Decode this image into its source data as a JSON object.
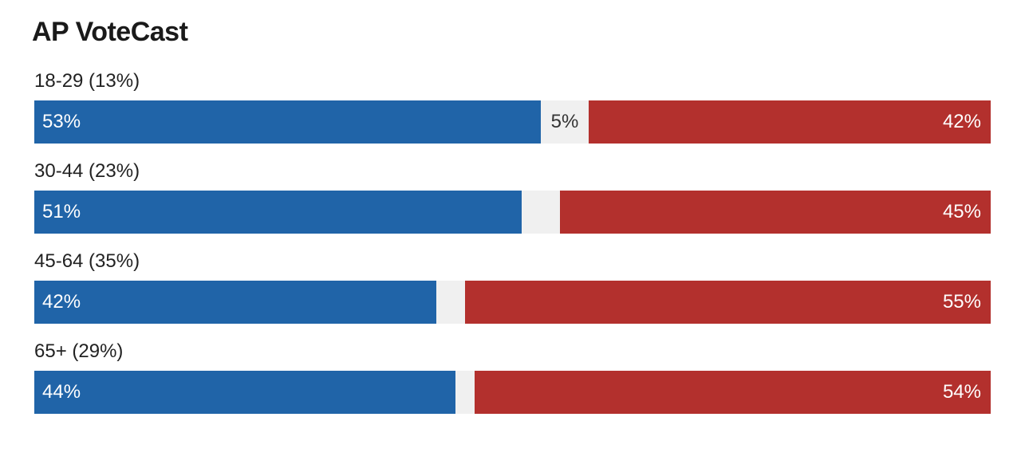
{
  "title": "AP VoteCast",
  "colors": {
    "dem": "#2064a8",
    "rep": "#b3302d",
    "other": "#f0f0f0"
  },
  "chart_data": {
    "type": "bar",
    "orientation": "horizontal",
    "stacked": true,
    "normalized": true,
    "title": "AP VoteCast",
    "categories": [
      "18-29 (13%)",
      "30-44 (23%)",
      "45-64 (35%)",
      "65+ (29%)"
    ],
    "series": [
      {
        "values": [
          53,
          51,
          42,
          44
        ],
        "labels": [
          "53%",
          "51%",
          "42%",
          "44%"
        ],
        "color": "#2064a8"
      },
      {
        "values": [
          5,
          4,
          3,
          2
        ],
        "labels": [
          "5%",
          "",
          "",
          ""
        ],
        "color": "#f0f0f0"
      },
      {
        "values": [
          42,
          45,
          55,
          54
        ],
        "labels": [
          "42%",
          "45%",
          "55%",
          "54%"
        ],
        "color": "#b3302d"
      }
    ],
    "xlim": [
      0,
      100
    ],
    "grid": false,
    "legend": "none"
  }
}
